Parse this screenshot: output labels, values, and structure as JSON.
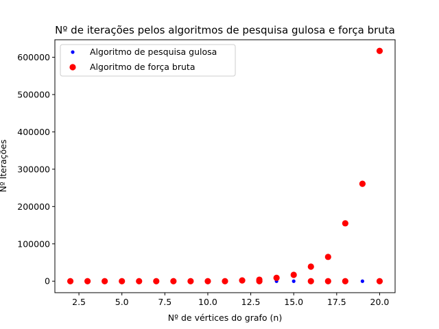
{
  "chart_data": {
    "type": "scatter",
    "title": "Nº de iterações pelos algoritmos de pesquisa gulosa e força bruta",
    "xlabel": "Nº de vértices do grafo (n)",
    "ylabel": "Nº Iterações",
    "xlim": [
      1.1,
      20.9
    ],
    "ylim": [
      -30800,
      646800
    ],
    "xticks": [
      2.5,
      5.0,
      7.5,
      10.0,
      12.5,
      15.0,
      17.5,
      20.0
    ],
    "xtick_labels": [
      "2.5",
      "5.0",
      "7.5",
      "10.0",
      "12.5",
      "15.0",
      "17.5",
      "20.0"
    ],
    "yticks": [
      0,
      100000,
      200000,
      300000,
      400000,
      500000,
      600000
    ],
    "ytick_labels": [
      "0",
      "100000",
      "200000",
      "300000",
      "400000",
      "500000",
      "600000"
    ],
    "grid": false,
    "legend_position": "top-left",
    "series": [
      {
        "name": "Algoritmo de pesquisa gulosa",
        "color": "#0000ff",
        "marker_size": "small",
        "x": [
          2,
          3,
          4,
          5,
          6,
          7,
          8,
          9,
          10,
          11,
          12,
          13,
          13,
          14,
          14,
          15,
          15,
          16,
          16,
          17,
          17,
          18,
          18,
          19,
          19,
          20,
          20
        ],
        "y": [
          0,
          0,
          0,
          0,
          0,
          0,
          0,
          0,
          0,
          0,
          2000,
          0,
          4000,
          0,
          9000,
          0,
          17000,
          0,
          39000,
          0,
          65000,
          0,
          155000,
          0,
          261000,
          0,
          617000
        ]
      },
      {
        "name": "Algoritmo de força bruta",
        "color": "#ff0000",
        "marker_size": "large",
        "x": [
          2,
          3,
          4,
          5,
          6,
          7,
          8,
          9,
          10,
          11,
          12,
          13,
          13,
          14,
          15,
          16,
          16,
          17,
          17,
          18,
          18,
          19,
          20,
          20
        ],
        "y": [
          0,
          0,
          0,
          0,
          0,
          0,
          0,
          0,
          0,
          0,
          2000,
          0,
          4000,
          9000,
          17000,
          0,
          39000,
          0,
          65000,
          0,
          155000,
          261000,
          0,
          617000
        ]
      }
    ]
  }
}
